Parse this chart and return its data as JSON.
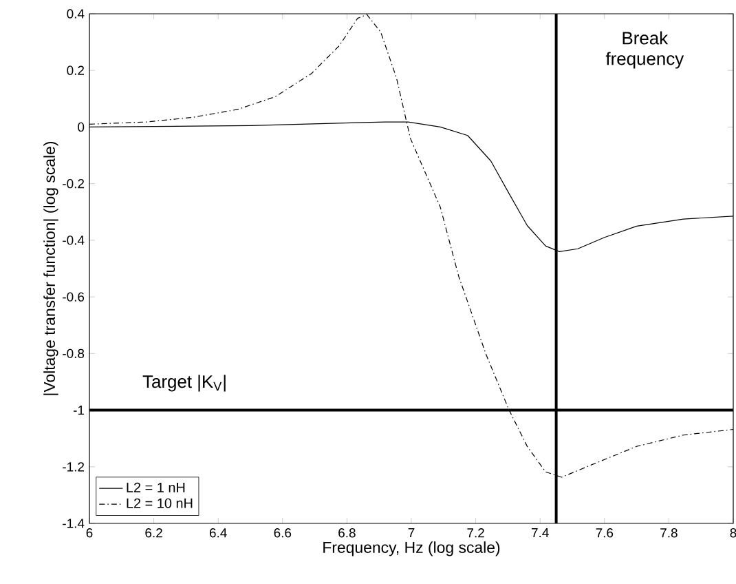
{
  "chart_data": {
    "type": "line",
    "xlabel": "Frequency, Hz (log scale)",
    "ylabel": "|Voltage transfer function| (log scale)",
    "xlim": [
      6,
      8
    ],
    "ylim": [
      -1.4,
      0.4
    ],
    "xticks": [
      6,
      6.2,
      6.4,
      6.6,
      6.8,
      7,
      7.2,
      7.4,
      7.6,
      7.8,
      8
    ],
    "yticks": [
      -1.4,
      -1.2,
      -1,
      -0.8,
      -0.6,
      -0.4,
      -0.2,
      0,
      0.2,
      0.4
    ],
    "series": [
      {
        "name": "L2 = 1 nH",
        "color": "#000000",
        "line_style": "solid",
        "x": [
          6.0,
          6.5,
          6.919,
          6.99,
          7.09,
          7.175,
          7.247,
          7.303,
          7.36,
          7.417,
          7.46,
          7.517,
          7.6,
          7.7,
          7.845,
          8.0
        ],
        "values": [
          0.0,
          0.005,
          0.018,
          0.018,
          0.0,
          -0.03,
          -0.12,
          -0.234,
          -0.348,
          -0.42,
          -0.44,
          -0.43,
          -0.39,
          -0.35,
          -0.325,
          -0.315
        ]
      },
      {
        "name": "L2 = 10 nH",
        "color": "#000000",
        "line_style": "dashdot",
        "x": [
          6.0,
          6.178,
          6.32,
          6.46,
          6.577,
          6.69,
          6.776,
          6.833,
          6.862,
          6.905,
          6.954,
          6.997,
          7.09,
          7.147,
          7.232,
          7.303,
          7.36,
          7.417,
          7.467,
          7.56,
          7.7,
          7.845,
          8.0
        ],
        "values": [
          0.01,
          0.018,
          0.034,
          0.062,
          0.107,
          0.189,
          0.287,
          0.384,
          0.397,
          0.335,
          0.173,
          -0.04,
          -0.283,
          -0.527,
          -0.803,
          -0.998,
          -1.128,
          -1.218,
          -1.237,
          -1.193,
          -1.128,
          -1.088,
          -1.068
        ]
      }
    ],
    "ref_lines": [
      {
        "axis": "x",
        "value": 7.45,
        "label": "Break frequency",
        "color": "#000000"
      },
      {
        "axis": "y",
        "value": -1,
        "label": "Target |K$_{V}$|",
        "color": "#000000"
      }
    ],
    "legend": "bottom left",
    "grid": false,
    "marker": "none"
  }
}
